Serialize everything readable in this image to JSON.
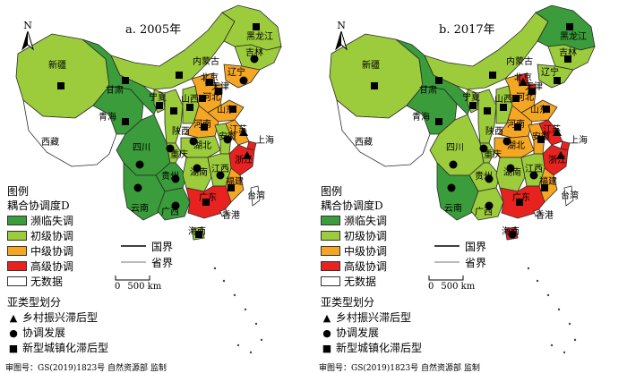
{
  "colors": {
    "level1": "#3a9c3a",
    "level2": "#9ccc3c",
    "level3": "#f5a623",
    "level4": "#e8231f",
    "nodata": "#ffffff",
    "boundary": "#2a2a2a"
  },
  "legend": {
    "title": "图例",
    "subtitle": "耦合协调度D",
    "classes": [
      "濒临失调",
      "初级协调",
      "中级协调",
      "高级协调",
      "无数据"
    ],
    "lines": [
      "国界",
      "省界"
    ],
    "scale_label": "500 km",
    "scale_zero": "0",
    "types_title": "亚类型划分",
    "types": [
      "乡村振兴滞后型",
      "协调发展",
      "新型城镇化滞后型"
    ]
  },
  "north_label": "N",
  "credit": "审图号：GS(2019)1823号  自然资源部 监制",
  "panels": [
    {
      "title": "a. 2005年",
      "provinces": {
        "新疆": {
          "level": 2,
          "type": "square"
        },
        "西藏": {
          "level": 0,
          "type": null
        },
        "青海": {
          "level": 1,
          "type": "square"
        },
        "甘肃": {
          "level": 1,
          "type": "square"
        },
        "内蒙古": {
          "level": 2,
          "type": "square"
        },
        "黑龙江": {
          "level": 2,
          "type": "square"
        },
        "吉林": {
          "level": 2,
          "type": "circle"
        },
        "辽宁": {
          "level": 3,
          "type": "circle"
        },
        "宁夏": {
          "level": 2,
          "type": "square"
        },
        "陕西": {
          "level": 2,
          "type": "square"
        },
        "山西": {
          "level": 2,
          "type": "square"
        },
        "北京": {
          "level": 3,
          "type": "square"
        },
        "天津": {
          "level": 3,
          "type": "square"
        },
        "河北": {
          "level": 3,
          "type": "square"
        },
        "山东": {
          "level": 3,
          "type": "square"
        },
        "河南": {
          "level": 3,
          "type": "square"
        },
        "四川": {
          "level": 1,
          "type": "circle"
        },
        "重庆": {
          "level": 2,
          "type": "circle"
        },
        "湖北": {
          "level": 2,
          "type": "circle"
        },
        "安徽": {
          "level": 2,
          "type": "circle"
        },
        "江苏": {
          "level": 3,
          "type": "triangle"
        },
        "上海": {
          "level": 4,
          "type": "triangle"
        },
        "浙江": {
          "level": 4,
          "type": "triangle"
        },
        "贵州": {
          "level": 1,
          "type": "circle"
        },
        "湖南": {
          "level": 2,
          "type": "circle"
        },
        "江西": {
          "level": 2,
          "type": "circle"
        },
        "福建": {
          "level": 3,
          "type": "square"
        },
        "云南": {
          "level": 1,
          "type": "circle"
        },
        "广西": {
          "level": 1,
          "type": "circle"
        },
        "广东": {
          "level": 4,
          "type": "square"
        },
        "海南": {
          "level": 2,
          "type": "square"
        },
        "台湾": {
          "level": 0,
          "type": null
        },
        "香港": {
          "level": 0,
          "type": null
        }
      }
    },
    {
      "title": "b. 2017年",
      "provinces": {
        "新疆": {
          "level": 2,
          "type": "square"
        },
        "西藏": {
          "level": 0,
          "type": null
        },
        "青海": {
          "level": 1,
          "type": "square"
        },
        "甘肃": {
          "level": 1,
          "type": "square"
        },
        "内蒙古": {
          "level": 2,
          "type": "square"
        },
        "黑龙江": {
          "level": 1,
          "type": "square"
        },
        "吉林": {
          "level": 2,
          "type": "square"
        },
        "辽宁": {
          "level": 2,
          "type": "square"
        },
        "宁夏": {
          "level": 2,
          "type": "square"
        },
        "陕西": {
          "level": 2,
          "type": "square"
        },
        "山西": {
          "level": 2,
          "type": "square"
        },
        "北京": {
          "level": 4,
          "type": "triangle"
        },
        "天津": {
          "level": 4,
          "type": "square"
        },
        "河北": {
          "level": 3,
          "type": "square"
        },
        "山东": {
          "level": 3,
          "type": "square"
        },
        "河南": {
          "level": 3,
          "type": "square"
        },
        "四川": {
          "level": 2,
          "type": "circle"
        },
        "重庆": {
          "level": 2,
          "type": "circle"
        },
        "湖北": {
          "level": 3,
          "type": "circle"
        },
        "安徽": {
          "level": 3,
          "type": "square"
        },
        "江苏": {
          "level": 4,
          "type": "triangle"
        },
        "上海": {
          "level": 4,
          "type": "triangle"
        },
        "浙江": {
          "level": 4,
          "type": "triangle"
        },
        "贵州": {
          "level": 2,
          "type": "circle"
        },
        "湖南": {
          "level": 2,
          "type": "circle"
        },
        "江西": {
          "level": 2,
          "type": "circle"
        },
        "福建": {
          "level": 3,
          "type": "square"
        },
        "云南": {
          "level": 1,
          "type": "circle"
        },
        "广西": {
          "level": 2,
          "type": "circle"
        },
        "广东": {
          "level": 4,
          "type": "square"
        },
        "海南": {
          "level": 4,
          "type": "circle"
        },
        "台湾": {
          "level": 0,
          "type": null
        },
        "香港": {
          "level": 0,
          "type": null
        }
      }
    }
  ]
}
